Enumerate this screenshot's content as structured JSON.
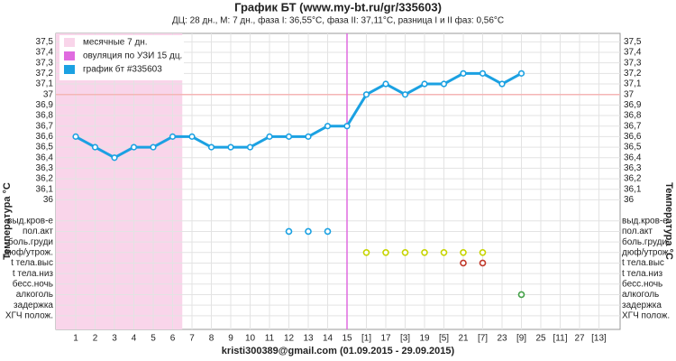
{
  "chart_data": {
    "type": "line",
    "title": "График БТ (www.my-bt.ru/gr/335603)",
    "subtitle": "ДЦ: 28 дн., М: 7 дн., фаза I: 36,55°С, фаза II: 37,11°С, разница I и II фаз: 0,56°С",
    "footer": "kristi300389@gmail.com (01.09.2015 - 29.09.2015)",
    "y_label": "Температура °С",
    "categories": [
      "1",
      "2",
      "3",
      "4",
      "5",
      "6",
      "7",
      "8",
      "9",
      "10",
      "11",
      "12",
      "13",
      "14",
      "15",
      "[1]",
      "17",
      "[3]",
      "19",
      "[5]",
      "21",
      "[7]",
      "23",
      "[9]",
      "25",
      "[11]",
      "27",
      "[13]"
    ],
    "series": [
      {
        "name": "график бт #335603",
        "color": "#1ba1e2",
        "values": [
          36.6,
          36.5,
          36.4,
          36.5,
          36.5,
          36.6,
          36.6,
          36.5,
          36.5,
          36.5,
          36.6,
          36.6,
          36.6,
          36.7,
          36.7,
          37.0,
          37.1,
          37.0,
          37.1,
          37.1,
          37.2,
          37.2,
          37.1,
          37.2,
          null,
          null,
          null,
          null
        ]
      }
    ],
    "period": {
      "name": "месячные 7 дн.",
      "color": "#f9d5ea",
      "range": [
        1,
        6.5
      ]
    },
    "ovulation": {
      "name": "овуляция по УЗИ 15 дц.",
      "color": "#e06be0",
      "day": 15
    },
    "coverline": 37,
    "ylim": [
      34.77,
      37.58
    ],
    "yticks": [
      36,
      {
        "value": 36.1,
        "label": "36,1"
      },
      {
        "value": 36.2,
        "label": "36,2"
      },
      {
        "value": 36.3,
        "label": "36,3"
      },
      {
        "value": 36.4,
        "label": "36,4"
      },
      {
        "value": 36.5,
        "label": "36,5"
      },
      {
        "value": 36.6,
        "label": "36,6"
      },
      {
        "value": 36.7,
        "label": "36,7"
      },
      {
        "value": 36.8,
        "label": "36,8"
      },
      {
        "value": 36.9,
        "label": "36,9"
      },
      37,
      {
        "value": 37.1,
        "label": "37,1"
      },
      {
        "value": 37.2,
        "label": "37,2"
      },
      {
        "value": 37.3,
        "label": "37,3"
      },
      {
        "value": 37.4,
        "label": "37,4"
      },
      {
        "value": 37.5,
        "label": "37,5"
      }
    ],
    "symptoms": [
      {
        "name": "выд.кров-е",
        "days": []
      },
      {
        "name": "пол.акт",
        "color": "#1ba1e2",
        "days": [
          12,
          13,
          14
        ]
      },
      {
        "name": "боль.груди",
        "days": []
      },
      {
        "name": "дюф/утрож.",
        "color": "#c6d400",
        "days": [
          16,
          17,
          18,
          19,
          20,
          21,
          22
        ]
      },
      {
        "name": "t тела.выс",
        "color": "#c0392b",
        "days": [
          21,
          22
        ]
      },
      {
        "name": "t тела.низ",
        "days": []
      },
      {
        "name": "бесс.ночь",
        "days": []
      },
      {
        "name": "алкоголь",
        "color": "#43a047",
        "days": [
          24
        ]
      },
      {
        "name": "задержка",
        "days": []
      },
      {
        "name": "ХГЧ полож.",
        "days": []
      }
    ],
    "grid": true
  }
}
